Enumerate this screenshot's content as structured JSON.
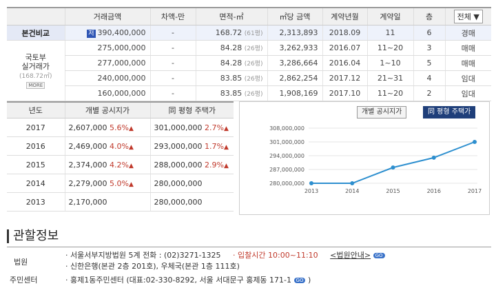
{
  "top_table": {
    "headers": [
      "",
      "거래금액",
      "차액-만",
      "면적-㎡",
      "㎡당 금액",
      "계약년월",
      "계약일",
      "층"
    ],
    "filter_label": "전체 ▼",
    "self_label": "본건비교",
    "self_badge": "저",
    "self_row": [
      "390,400,000",
      "-",
      "168.72",
      "(61평)",
      "2,313,893",
      "2018.09",
      "11",
      "6",
      "경매"
    ],
    "side_label_1": "국토부",
    "side_label_2": "실거래가",
    "side_label_3": "(168.72㎡)",
    "more_label": "MORE",
    "rows": [
      [
        "275,000,000",
        "-",
        "84.28",
        "(26평)",
        "3,262,933",
        "2016.07",
        "11~20",
        "3",
        "매매"
      ],
      [
        "277,000,000",
        "-",
        "84.28",
        "(26평)",
        "3,286,664",
        "2016.04",
        "1~10",
        "5",
        "매매"
      ],
      [
        "240,000,000",
        "-",
        "83.85",
        "(26평)",
        "2,862,254",
        "2017.12",
        "21~31",
        "4",
        "임대"
      ],
      [
        "160,000,000",
        "-",
        "83.85",
        "(26평)",
        "1,908,169",
        "2017.10",
        "11~20",
        "2",
        "임대"
      ]
    ]
  },
  "price_table": {
    "headers": [
      "년도",
      "개별 공시지가",
      "同 평형 주택가"
    ],
    "rows": [
      {
        "year": "2017",
        "land": "2,607,000",
        "land_pct": "5.6%",
        "house": "301,000,000",
        "house_pct": "2.7%"
      },
      {
        "year": "2016",
        "land": "2,469,000",
        "land_pct": "4.0%",
        "house": "293,000,000",
        "house_pct": "1.7%"
      },
      {
        "year": "2015",
        "land": "2,374,000",
        "land_pct": "4.2%",
        "house": "288,000,000",
        "house_pct": "2.9%"
      },
      {
        "year": "2014",
        "land": "2,279,000",
        "land_pct": "5.0%",
        "house": "280,000,000",
        "house_pct": ""
      },
      {
        "year": "2013",
        "land": "2,170,000",
        "land_pct": "",
        "house": "280,000,000",
        "house_pct": ""
      }
    ],
    "up_mark": "▲"
  },
  "chart_tabs": {
    "tab1": "개별 공시지가",
    "tab2": "同 평형 주택가"
  },
  "chart_data": {
    "type": "line",
    "x": [
      "2013",
      "2014",
      "2015",
      "2016",
      "2017"
    ],
    "series": [
      {
        "values": [
          280000000,
          280000000,
          288000000,
          293000000,
          301000000
        ]
      }
    ],
    "ylim": [
      280000000,
      308000000
    ],
    "yticks": [
      "308,000,000",
      "301,000,000",
      "294,000,000",
      "287,000,000",
      "280,000,000"
    ],
    "color": "#2d8fcf",
    "grid": true
  },
  "jurisdiction": {
    "title": "관할정보",
    "court_label": "법원",
    "court_line1": "· 서울서부지방법원 5계 전화 : (02)3271-1325",
    "court_time_label": "· 입찰시간",
    "court_time": "10:00~11:10",
    "court_link": "<법원안내>",
    "court_line2": "· 신한은행(본관 2층 201호), 우체국(본관 1층 111호)",
    "center_label": "주민센터",
    "center_line": "· 홍제1동주민센터 (대표:02-330-8292, 서울 서대문구 홍제동 171-1",
    "center_end": ")",
    "go_label": "GO"
  }
}
